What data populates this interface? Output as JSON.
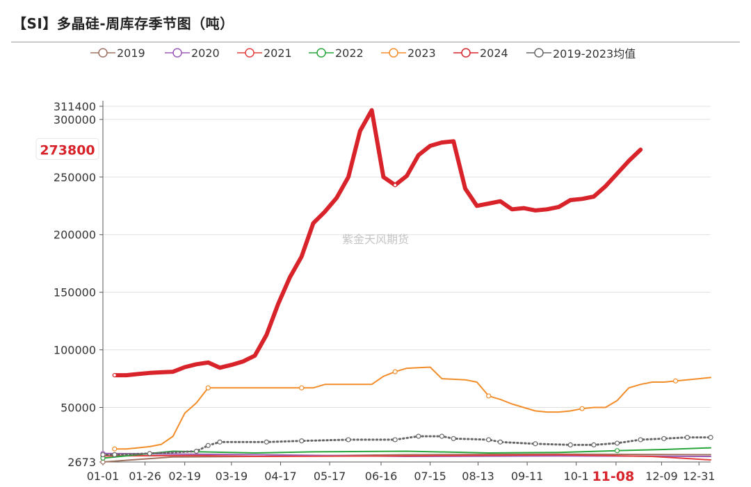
{
  "title": "【SI】多晶硅-周库存季节图（吨）",
  "watermark": "紫金天风期货",
  "chart_data": {
    "type": "line",
    "title": "【SI】多晶硅-周库存季节图（吨）",
    "ylim": [
      2673,
      311400
    ],
    "yticks": [
      2673,
      50000,
      100000,
      150000,
      200000,
      250000,
      300000,
      311400
    ],
    "xticks": [
      "01-01",
      "01-26",
      "02-19",
      "03-19",
      "04-17",
      "05-17",
      "06-16",
      "07-15",
      "08-13",
      "09-11",
      "10-1",
      "11-08",
      "12-09",
      "12-31"
    ],
    "highlight": {
      "y_value": 273800,
      "x_label": "11-08"
    },
    "grid": true,
    "legend_position": "top",
    "series": [
      {
        "name": "2019",
        "color": "#a0705f",
        "style": "solid",
        "points": [
          [
            0,
            2673
          ],
          [
            6,
            7000
          ],
          [
            13,
            7500
          ],
          [
            26,
            9000
          ],
          [
            39,
            9500
          ],
          [
            52,
            9000
          ]
        ]
      },
      {
        "name": "2020",
        "color": "#9b59b6",
        "style": "solid",
        "points": [
          [
            0,
            10000
          ],
          [
            13,
            9000
          ],
          [
            26,
            7500
          ],
          [
            39,
            8000
          ],
          [
            52,
            7500
          ]
        ]
      },
      {
        "name": "2021",
        "color": "#e23d3d",
        "style": "solid",
        "points": [
          [
            0,
            8000
          ],
          [
            8,
            8200
          ],
          [
            13,
            7500
          ],
          [
            26,
            8000
          ],
          [
            33,
            8500
          ],
          [
            39,
            9000
          ],
          [
            47,
            7500
          ],
          [
            52,
            4500
          ]
        ]
      },
      {
        "name": "2022",
        "color": "#27a53a",
        "style": "solid",
        "points": [
          [
            0,
            6000
          ],
          [
            3,
            9000
          ],
          [
            6,
            12000
          ],
          [
            13,
            10500
          ],
          [
            18,
            11500
          ],
          [
            26,
            12000
          ],
          [
            33,
            10500
          ],
          [
            39,
            11000
          ],
          [
            44,
            12500
          ],
          [
            48,
            13500
          ],
          [
            52,
            15000
          ]
        ]
      },
      {
        "name": "2023",
        "color": "#f28c28",
        "style": "solid",
        "points": [
          [
            1,
            14000
          ],
          [
            2,
            14000
          ],
          [
            3,
            15000
          ],
          [
            4,
            16000
          ],
          [
            5,
            18000
          ],
          [
            6,
            25000
          ],
          [
            7,
            45000
          ],
          [
            8,
            54000
          ],
          [
            9,
            67000
          ],
          [
            10,
            67000
          ],
          [
            11,
            67000
          ],
          [
            12,
            67000
          ],
          [
            13,
            67000
          ],
          [
            14,
            67000
          ],
          [
            15,
            67000
          ],
          [
            16,
            67000
          ],
          [
            17,
            67000
          ],
          [
            18,
            67000
          ],
          [
            19,
            70000
          ],
          [
            20,
            70000
          ],
          [
            21,
            70000
          ],
          [
            22,
            70000
          ],
          [
            23,
            70000
          ],
          [
            24,
            77000
          ],
          [
            25,
            81000
          ],
          [
            26,
            84000
          ],
          [
            27,
            84500
          ],
          [
            28,
            85000
          ],
          [
            29,
            75000
          ],
          [
            30,
            74500
          ],
          [
            31,
            74000
          ],
          [
            32,
            72000
          ],
          [
            33,
            60000
          ],
          [
            34,
            57000
          ],
          [
            35,
            53000
          ],
          [
            36,
            50000
          ],
          [
            37,
            47000
          ],
          [
            38,
            46000
          ],
          [
            39,
            46000
          ],
          [
            40,
            47000
          ],
          [
            41,
            49000
          ],
          [
            42,
            50000
          ],
          [
            43,
            50000
          ],
          [
            44,
            56000
          ],
          [
            45,
            67000
          ],
          [
            46,
            70000
          ],
          [
            47,
            72000
          ],
          [
            48,
            72000
          ],
          [
            49,
            73000
          ],
          [
            50,
            74000
          ],
          [
            51,
            75000
          ],
          [
            52,
            76000
          ]
        ]
      },
      {
        "name": "2024",
        "color": "#d8232a",
        "style": "bold",
        "points": [
          [
            1,
            78000
          ],
          [
            2,
            78000
          ],
          [
            3,
            79000
          ],
          [
            4,
            80000
          ],
          [
            5,
            80500
          ],
          [
            6,
            81000
          ],
          [
            7,
            85000
          ],
          [
            8,
            87500
          ],
          [
            9,
            89000
          ],
          [
            10,
            84500
          ],
          [
            11,
            87000
          ],
          [
            12,
            90000
          ],
          [
            13,
            95000
          ],
          [
            14,
            113000
          ],
          [
            15,
            140000
          ],
          [
            16,
            163000
          ],
          [
            17,
            181000
          ],
          [
            18,
            210000
          ],
          [
            19,
            220000
          ],
          [
            20,
            232000
          ],
          [
            21,
            250000
          ],
          [
            22,
            290000
          ],
          [
            23,
            308000
          ],
          [
            24,
            250000
          ],
          [
            25,
            243000
          ],
          [
            26,
            251000
          ],
          [
            27,
            269000
          ],
          [
            28,
            277000
          ],
          [
            29,
            280000
          ],
          [
            30,
            281000
          ],
          [
            31,
            240000
          ],
          [
            32,
            225000
          ],
          [
            33,
            227000
          ],
          [
            34,
            229000
          ],
          [
            35,
            222000
          ],
          [
            36,
            223000
          ],
          [
            37,
            221000
          ],
          [
            38,
            222000
          ],
          [
            39,
            224000
          ],
          [
            40,
            230000
          ],
          [
            41,
            231000
          ],
          [
            42,
            233000
          ],
          [
            43,
            242000
          ],
          [
            44,
            253000
          ],
          [
            45,
            264000
          ],
          [
            46,
            273800
          ]
        ]
      },
      {
        "name": "2019-2023均值",
        "color": "#666666",
        "style": "dotted",
        "points": [
          [
            0,
            9000
          ],
          [
            1,
            9000
          ],
          [
            4,
            10000
          ],
          [
            8,
            12000
          ],
          [
            9,
            17000
          ],
          [
            10,
            20000
          ],
          [
            14,
            20000
          ],
          [
            17,
            21000
          ],
          [
            21,
            22000
          ],
          [
            25,
            22000
          ],
          [
            27,
            25000
          ],
          [
            29,
            25000
          ],
          [
            30,
            23000
          ],
          [
            33,
            22000
          ],
          [
            34,
            20000
          ],
          [
            37,
            18500
          ],
          [
            40,
            17500
          ],
          [
            42,
            17500
          ],
          [
            44,
            19000
          ],
          [
            46,
            22000
          ],
          [
            48,
            23000
          ],
          [
            50,
            24000
          ],
          [
            52,
            24000
          ]
        ]
      }
    ]
  }
}
